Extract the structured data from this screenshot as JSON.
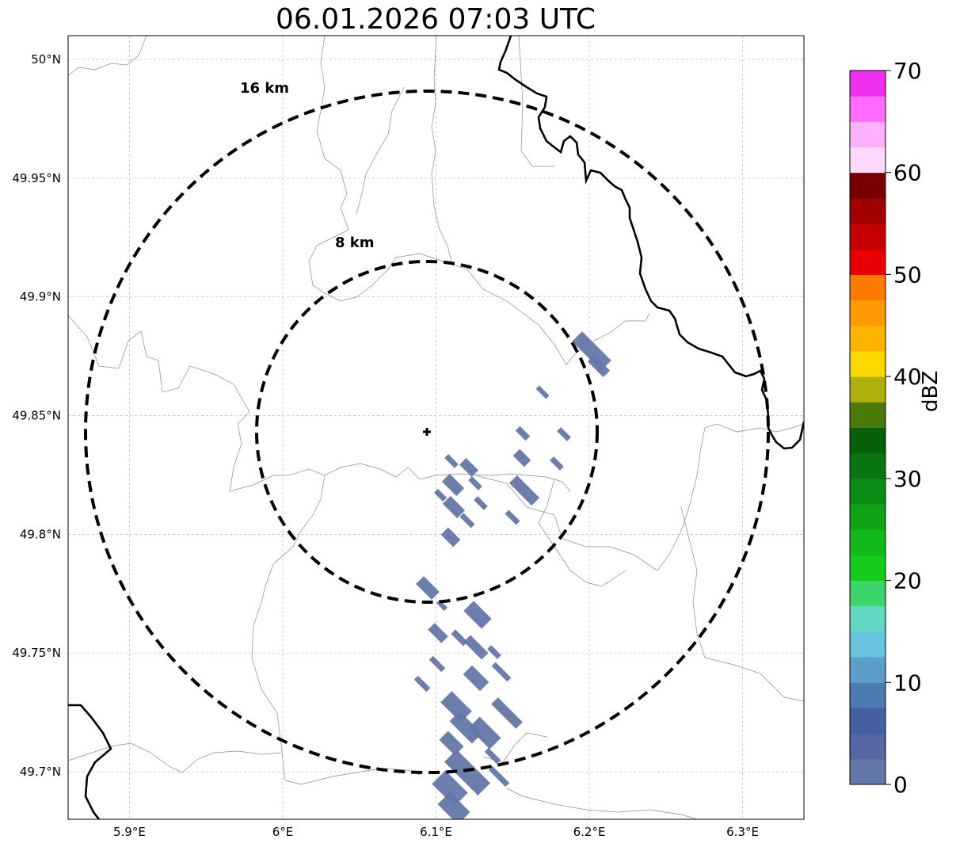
{
  "title": "06.01.2026 07:03 UTC",
  "map": {
    "lon_range": [
      5.86,
      6.34
    ],
    "lat_range": [
      49.68,
      50.01
    ],
    "lon_ticks": [
      5.9,
      6.0,
      6.1,
      6.2,
      6.3
    ],
    "lon_tick_labels": [
      "5.9°E",
      "6°E",
      "6.1°E",
      "6.2°E",
      "6.3°E"
    ],
    "lat_ticks": [
      50.0,
      49.95,
      49.9,
      49.85,
      49.8,
      49.75,
      49.7
    ],
    "lat_tick_labels": [
      "50°N",
      "49.95°N",
      "49.9°N",
      "49.85°N",
      "49.8°N",
      "49.75°N",
      "49.7°N"
    ],
    "grid": true,
    "radar_center": {
      "lon": 6.095,
      "lat": 49.843
    },
    "range_rings": [
      {
        "radius_km": 8,
        "label": "8 km"
      },
      {
        "radius_km": 16,
        "label": "16 km"
      }
    ],
    "echo_value_dbz": "0-5",
    "echo_color": "#6478a8"
  },
  "colorbar": {
    "label": "dBZ",
    "ticks": [
      "0",
      "10",
      "20",
      "30",
      "40",
      "50",
      "60",
      "70"
    ],
    "colors": [
      "#6478a8",
      "#5568a2",
      "#4560a3",
      "#4c7aaf",
      "#5b9fc8",
      "#68c3dc",
      "#62d8c4",
      "#3ed46c",
      "#14cc1a",
      "#10b818",
      "#0ea314",
      "#0a8d14",
      "#087510",
      "#065f0a",
      "#4a7a08",
      "#adb00a",
      "#ffd800",
      "#ffb400",
      "#ff9a00",
      "#ff7a00",
      "#e80000",
      "#c40000",
      "#a00000",
      "#7a0000",
      "#ffd8ff",
      "#ffb0ff",
      "#ff6cff",
      "#ee30ee"
    ]
  }
}
